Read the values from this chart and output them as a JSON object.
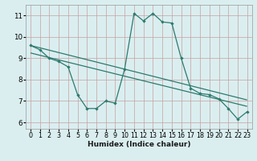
{
  "x": [
    0,
    1,
    2,
    3,
    4,
    5,
    6,
    7,
    8,
    9,
    10,
    11,
    12,
    13,
    14,
    15,
    16,
    17,
    18,
    19,
    20,
    21,
    22,
    23
  ],
  "y_main": [
    9.6,
    9.4,
    9.0,
    8.85,
    8.6,
    7.3,
    6.65,
    6.65,
    7.0,
    6.9,
    8.5,
    11.1,
    10.75,
    11.1,
    10.7,
    10.65,
    9.0,
    7.6,
    7.35,
    7.3,
    7.1,
    6.65,
    6.15,
    6.5
  ],
  "trend1_x": [
    0,
    23
  ],
  "trend1_y": [
    9.6,
    7.05
  ],
  "trend2_x": [
    0,
    23
  ],
  "trend2_y": [
    9.25,
    6.75
  ],
  "main_color": "#2d7a6e",
  "trend_color": "#2d7a6e",
  "bg_color": "#daeef0",
  "grid_major_color": "#c8dfe0",
  "grid_minor_color": "#e8f4f5",
  "xlabel": "Humidex (Indice chaleur)",
  "xlim": [
    -0.5,
    23.5
  ],
  "ylim": [
    5.7,
    11.5
  ],
  "yticks": [
    6,
    7,
    8,
    9,
    10,
    11
  ],
  "xticks": [
    0,
    1,
    2,
    3,
    4,
    5,
    6,
    7,
    8,
    9,
    10,
    11,
    12,
    13,
    14,
    15,
    16,
    17,
    18,
    19,
    20,
    21,
    22,
    23
  ],
  "xlabel_fontsize": 6.5,
  "tick_fontsize": 5.8
}
